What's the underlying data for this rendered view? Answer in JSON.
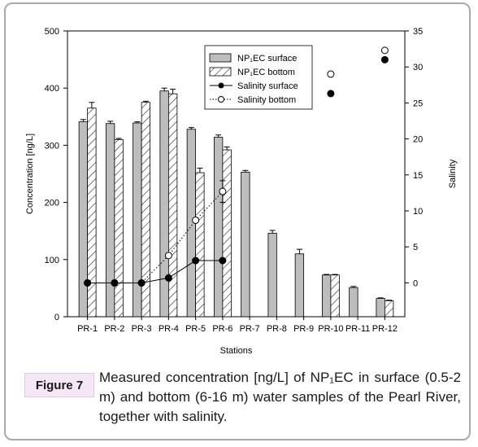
{
  "figure": {
    "label": "Figure 7",
    "caption": "Measured concentration [ng/L] of NP₁EC in surface (0.5-2 m) and bottom (6-16 m) water samples of the Pearl River, together with salinity."
  },
  "chart_data": {
    "type": "bar",
    "categories": [
      "PR-1",
      "PR-2",
      "PR-3",
      "PR-4",
      "PR-5",
      "PR-6",
      "PR-7",
      "PR-8",
      "PR-9",
      "PR-10",
      "PR-11",
      "PR-12"
    ],
    "series": [
      {
        "name": "NP₁EC surface",
        "kind": "bar",
        "axis": "left",
        "fill": "#bdbdbd",
        "values": [
          341,
          338,
          339,
          395,
          328,
          314,
          253,
          146,
          110,
          73,
          51,
          32
        ],
        "errors": [
          4,
          4,
          2,
          5,
          3,
          4,
          3,
          5,
          8,
          1,
          2,
          1
        ]
      },
      {
        "name": "NP₁EC bottom",
        "kind": "bar",
        "pattern": "diagonal-hatch",
        "axis": "left",
        "values": [
          365,
          310,
          375,
          390,
          252,
          292,
          null,
          null,
          null,
          73,
          null,
          28
        ],
        "errors": [
          10,
          2,
          2,
          8,
          8,
          5,
          null,
          null,
          null,
          1,
          null,
          1
        ]
      },
      {
        "name": "Salinity surface",
        "kind": "line-marker",
        "marker": "filled-circle",
        "line": "solid",
        "axis": "right",
        "values": [
          0,
          0,
          0,
          0.7,
          3.1,
          3.1,
          null,
          null,
          null,
          26.3,
          null,
          31
        ]
      },
      {
        "name": "Salinity bottom",
        "kind": "line-marker",
        "marker": "open-circle",
        "line": "dotted",
        "axis": "right",
        "values": [
          0,
          0,
          0,
          3.8,
          8.7,
          12.7,
          null,
          null,
          null,
          29,
          null,
          32.3
        ],
        "errors": [
          null,
          null,
          null,
          null,
          null,
          1.5,
          null,
          null,
          null,
          null,
          null,
          null
        ]
      }
    ],
    "xlabel": "Stations",
    "ylabel": "Concentration [ng/L]",
    "y2label": "Salinity",
    "ylim": [
      0,
      500
    ],
    "yticks": [
      0,
      100,
      200,
      300,
      400,
      500
    ],
    "y2lim": [
      -4.7,
      35
    ],
    "y2ticks": [
      0,
      5,
      10,
      15,
      20,
      25,
      30,
      35
    ],
    "legend_position": "top-center",
    "grid": false
  }
}
